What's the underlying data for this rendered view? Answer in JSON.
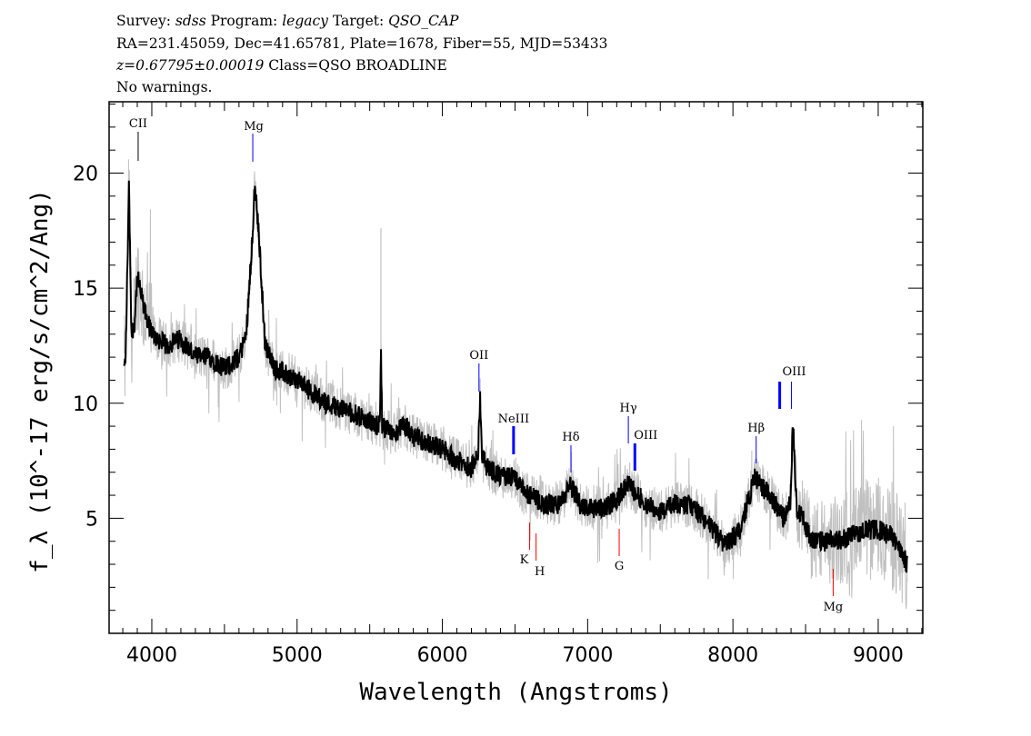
{
  "header": {
    "survey_label": "Survey:",
    "survey": "sdss",
    "program_label": "Program:",
    "program": "legacy",
    "target_label": "Target:",
    "target": "QSO_CAP",
    "line2": "RA=231.45059, Dec=41.65781, Plate=1678, Fiber=55, MJD=53433",
    "redshift": "z=0.67795±0.00019",
    "class": "Class=QSO BROADLINE",
    "warnings": "No warnings."
  },
  "chart_data": {
    "type": "line",
    "xlabel": "Wavelength (Angstroms)",
    "ylabel": "f_λ (10^-17 erg/s/cm^2/Ang)",
    "xlim": [
      3706,
      9307
    ],
    "ylim": [
      0,
      23.1
    ],
    "xticks": [
      4000,
      5000,
      6000,
      7000,
      8000,
      9000
    ],
    "yticks": [
      5,
      10,
      15,
      20
    ],
    "colors": {
      "flux": "#000000",
      "noise": "#c0c0c0",
      "emission": "#0000ff",
      "absorption": "#ff0000",
      "other": "#000000"
    },
    "spectrum": {
      "x": [
        3810,
        3820,
        3843,
        3860,
        3880,
        3900,
        3950,
        4000,
        4100,
        4200,
        4300,
        4400,
        4500,
        4600,
        4650,
        4690,
        4710,
        4740,
        4780,
        4850,
        5000,
        5100,
        5200,
        5300,
        5400,
        5500,
        5570,
        5577,
        5585,
        5650,
        5750,
        5800,
        5900,
        6000,
        6100,
        6200,
        6245,
        6259,
        6275,
        6300,
        6400,
        6500,
        6550,
        6600,
        6700,
        6800,
        6885,
        6950,
        7000,
        7100,
        7200,
        7280,
        7400,
        7500,
        7600,
        7700,
        7800,
        7900,
        7950,
        8050,
        8150,
        8250,
        8350,
        8395,
        8412,
        8440,
        8550,
        8700,
        8800,
        8900,
        9000,
        9100,
        9200
      ],
      "y": [
        11.5,
        12,
        19.5,
        13,
        13.5,
        15.5,
        14,
        13,
        12.5,
        12.8,
        12,
        12,
        11.5,
        12,
        13,
        17,
        19.5,
        17,
        12.5,
        11.5,
        11,
        10.5,
        10,
        9.8,
        9.5,
        9.2,
        9,
        12.3,
        9,
        8.7,
        9,
        8.5,
        8.3,
        8,
        7.5,
        7.2,
        7.6,
        10.3,
        7.6,
        7.3,
        6.8,
        6.8,
        6.2,
        6,
        5.6,
        5.6,
        6.4,
        5.6,
        5.5,
        5.4,
        5.8,
        6.5,
        5.6,
        5.3,
        5.6,
        5.6,
        5,
        4.2,
        3.8,
        4.5,
        6.8,
        6,
        5,
        5.6,
        9.2,
        5.5,
        4,
        4,
        4.2,
        4.5,
        4.5,
        4.2,
        3
      ]
    },
    "line_markers": [
      {
        "label": "CII",
        "wavelength": 3906,
        "type": "other"
      },
      {
        "label": "Mg",
        "wavelength": 4695,
        "type": "emission"
      },
      {
        "label": "OII",
        "wavelength": 6252,
        "type": "emission"
      },
      {
        "label": "NeIII",
        "wavelength": 6490,
        "type": "emission"
      },
      {
        "label": "Hδ",
        "wavelength": 6885,
        "type": "emission"
      },
      {
        "label": "Hγ",
        "wavelength": 7280,
        "type": "emission"
      },
      {
        "label": "OIII",
        "wavelength": 7325,
        "type": "emission"
      },
      {
        "label": "Hβ",
        "wavelength": 8160,
        "type": "emission"
      },
      {
        "label": "",
        "wavelength": 8322,
        "type": "emission"
      },
      {
        "label": "OIII",
        "wavelength": 8403,
        "type": "emission"
      },
      {
        "label": "K",
        "wavelength": 6600,
        "type": "absorption"
      },
      {
        "label": "H",
        "wavelength": 6645,
        "type": "absorption"
      },
      {
        "label": "G",
        "wavelength": 7217,
        "type": "absorption"
      },
      {
        "label": "Mg",
        "wavelength": 8690,
        "type": "absorption"
      }
    ]
  }
}
